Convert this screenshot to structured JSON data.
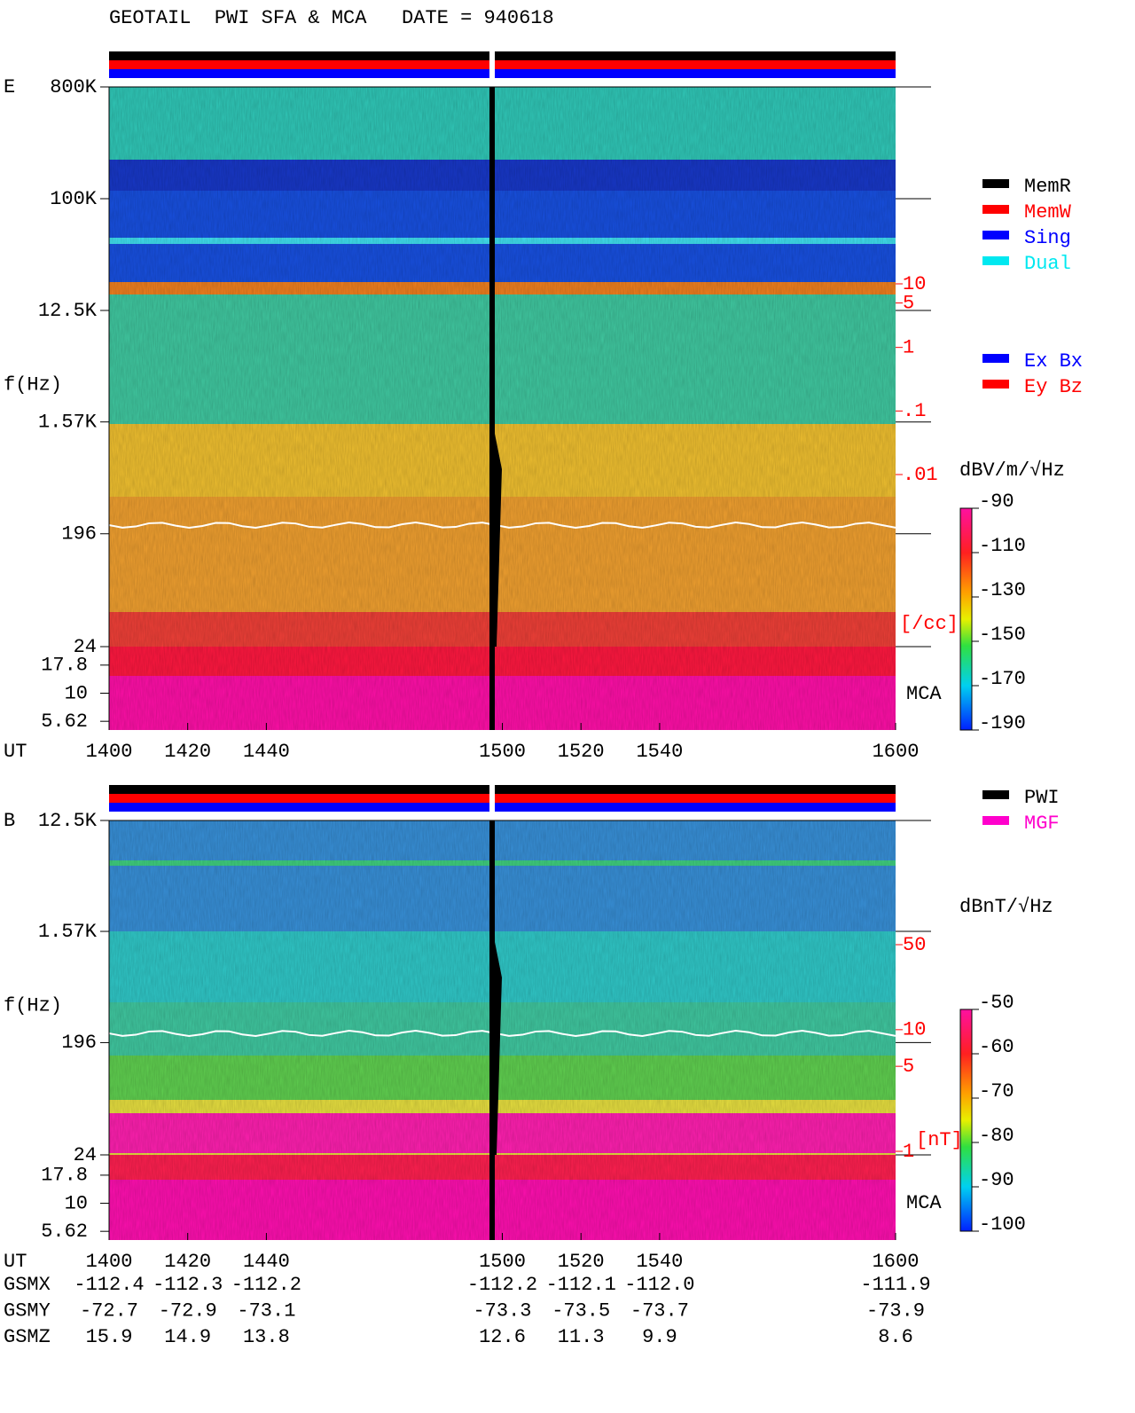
{
  "title": "GEOTAIL  PWI SFA & MCA   DATE = 940618",
  "chart_data": [
    {
      "type": "spectrogram",
      "panel": "E",
      "y_label": "f(Hz)",
      "x_label": "UT",
      "log_y": true,
      "ylim": [
        24,
        800000
      ],
      "yticks": [
        {
          "value": 800000,
          "label": "800K"
        },
        {
          "value": 100000,
          "label": "100K"
        },
        {
          "value": 12500,
          "label": "12.5K"
        },
        {
          "value": 1570,
          "label": "1.57K"
        },
        196,
        24
      ],
      "mca_label": "MCA",
      "mca_ylim": [
        4.7,
        26
      ],
      "mca_yticks": [
        17.8,
        10,
        5.62
      ],
      "xlim": [
        1400,
        1600
      ],
      "xticks": [
        1400,
        1420,
        1440,
        1500,
        1520,
        1540,
        1600
      ],
      "right_axis": {
        "label": "[/cc]",
        "color": "#ff0000",
        "log": true,
        "lim": [
          0.01,
          10
        ],
        "ticks": [
          10,
          5,
          1,
          {
            "value": 0.1,
            "label": ".1"
          },
          {
            "value": 0.01,
            "label": ".01"
          }
        ]
      },
      "colorbar": {
        "label": "dBV/m/√Hz",
        "lim": [
          -190,
          -90
        ],
        "ticks": [
          -90,
          -110,
          -130,
          -150,
          -170,
          -190
        ]
      },
      "legend": [
        {
          "name": "MemR",
          "color": "#000000"
        },
        {
          "name": "MemW",
          "color": "#ff0000"
        },
        {
          "name": "Sing",
          "color": "#0000ff"
        },
        {
          "name": "Dual",
          "color": "#00e8f0"
        }
      ],
      "legend2": [
        {
          "name": "Ex Bx",
          "color": "#0000ff"
        },
        {
          "name": "Ey Bz",
          "color": "#ff0000"
        }
      ]
    },
    {
      "type": "spectrogram",
      "panel": "B",
      "y_label": "f(Hz)",
      "x_label": "UT",
      "log_y": true,
      "ylim": [
        24,
        12500
      ],
      "yticks": [
        {
          "value": 12500,
          "label": "12.5K"
        },
        {
          "value": 1570,
          "label": "1.57K"
        },
        196,
        24
      ],
      "mca_label": "MCA",
      "mca_ylim": [
        4.7,
        27
      ],
      "mca_yticks": [
        17.8,
        10,
        5.62
      ],
      "xlim": [
        1400,
        1600
      ],
      "xticks": [
        1400,
        1420,
        1440,
        1500,
        1520,
        1540,
        1600
      ],
      "right_axis": {
        "label": "[nT]",
        "color": "#ff0000",
        "log": true,
        "lim": [
          1,
          50
        ],
        "ticks": [
          50,
          10,
          5,
          1
        ]
      },
      "colorbar": {
        "label": "dBnT/√Hz",
        "lim": [
          -100,
          -50
        ],
        "ticks": [
          -50,
          -60,
          -70,
          -80,
          -90,
          -100
        ]
      },
      "legend": [
        {
          "name": "PWI",
          "color": "#000000"
        },
        {
          "name": "MGF",
          "color": "#ff00cc"
        }
      ]
    }
  ],
  "orbit": {
    "rows": [
      {
        "name": "GSMX",
        "values": [
          -112.4,
          -112.3,
          -112.2,
          -112.2,
          -112.1,
          {
            "value": -112,
            "label": "-112.0"
          },
          -111.9
        ]
      },
      {
        "name": "GSMY",
        "values": [
          -72.7,
          -72.9,
          -73.1,
          -73.3,
          -73.5,
          -73.7,
          -73.9
        ]
      },
      {
        "name": "GSMZ",
        "values": [
          15.9,
          14.9,
          13.8,
          12.6,
          11.3,
          9.9,
          8.6
        ]
      }
    ]
  }
}
